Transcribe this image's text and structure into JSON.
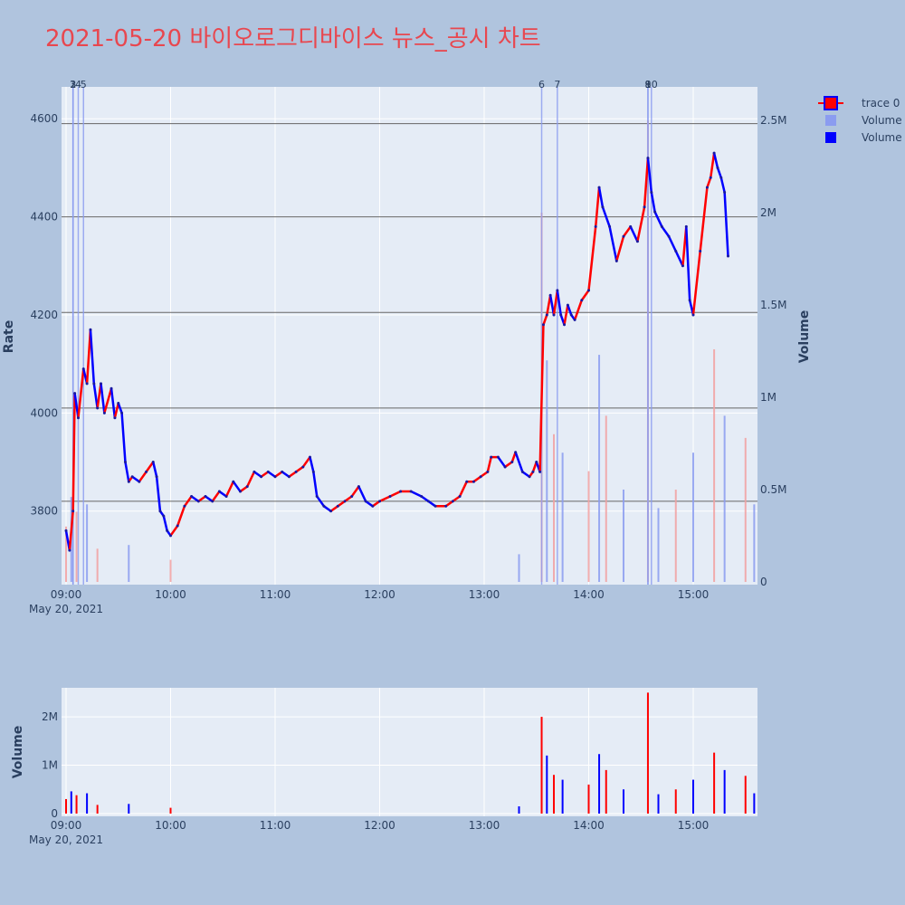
{
  "title": "2021-05-20 바이오로그디바이스 뉴스_공시 차트",
  "colors": {
    "up": "#ff0000",
    "down": "#0000ff",
    "volume_light": "#8b9cf0",
    "volume_dark": "#0000ff",
    "up_volume": "#f2a0a0",
    "grid": "#ffffff",
    "panel": "#e5ecf6",
    "hline": "#666666"
  },
  "chart_data": {
    "type": "candlestick",
    "x_ticks": [
      "09:00",
      "10:00",
      "11:00",
      "12:00",
      "13:00",
      "14:00",
      "15:00"
    ],
    "x_date_label": "May 20, 2021",
    "price_axis": {
      "label": "Rate",
      "ticks": [
        "3800",
        "4000",
        "4200",
        "4400",
        "4600"
      ],
      "range": [
        3650,
        4665
      ]
    },
    "volume_axis_right": {
      "label": "Volume",
      "ticks": [
        "0",
        "0.5M",
        "1M",
        "1.5M",
        "2M",
        "2.5M"
      ],
      "range": [
        0,
        2500000
      ]
    },
    "volume_axis_bottom": {
      "label": "Volume",
      "ticks": [
        "0",
        "1M",
        "2M"
      ],
      "range": [
        0,
        2600000
      ]
    },
    "horizontal_lines": [
      4590,
      4400,
      4205,
      4010,
      3820
    ],
    "events": [
      {
        "label": "1",
        "time": "09:04"
      },
      {
        "label": "2",
        "time": "09:04"
      },
      {
        "label": "3",
        "time": "09:04"
      },
      {
        "label": "4",
        "time": "09:07"
      },
      {
        "label": "5",
        "time": "09:10"
      },
      {
        "label": "6",
        "time": "13:33"
      },
      {
        "label": "7",
        "time": "13:42"
      },
      {
        "label": "8",
        "time": "14:34"
      },
      {
        "label": "9",
        "time": "14:34"
      },
      {
        "label": "10",
        "time": "14:36"
      }
    ],
    "price_series": [
      [
        "09:00",
        3760
      ],
      [
        "09:02",
        3720
      ],
      [
        "09:04",
        3800
      ],
      [
        "09:05",
        4040
      ],
      [
        "09:07",
        3990
      ],
      [
        "09:10",
        4090
      ],
      [
        "09:12",
        4060
      ],
      [
        "09:14",
        4170
      ],
      [
        "09:16",
        4060
      ],
      [
        "09:18",
        4010
      ],
      [
        "09:20",
        4060
      ],
      [
        "09:22",
        4000
      ],
      [
        "09:26",
        4050
      ],
      [
        "09:28",
        3990
      ],
      [
        "09:30",
        4020
      ],
      [
        "09:32",
        4000
      ],
      [
        "09:34",
        3900
      ],
      [
        "09:36",
        3860
      ],
      [
        "09:38",
        3870
      ],
      [
        "09:42",
        3860
      ],
      [
        "09:46",
        3880
      ],
      [
        "09:50",
        3900
      ],
      [
        "09:52",
        3870
      ],
      [
        "09:54",
        3800
      ],
      [
        "09:56",
        3790
      ],
      [
        "09:58",
        3760
      ],
      [
        "10:00",
        3750
      ],
      [
        "10:04",
        3770
      ],
      [
        "10:08",
        3810
      ],
      [
        "10:12",
        3830
      ],
      [
        "10:16",
        3820
      ],
      [
        "10:20",
        3830
      ],
      [
        "10:24",
        3820
      ],
      [
        "10:28",
        3840
      ],
      [
        "10:32",
        3830
      ],
      [
        "10:36",
        3860
      ],
      [
        "10:40",
        3840
      ],
      [
        "10:44",
        3850
      ],
      [
        "10:48",
        3880
      ],
      [
        "10:52",
        3870
      ],
      [
        "10:56",
        3880
      ],
      [
        "11:00",
        3870
      ],
      [
        "11:04",
        3880
      ],
      [
        "11:08",
        3870
      ],
      [
        "11:12",
        3880
      ],
      [
        "11:16",
        3890
      ],
      [
        "11:20",
        3910
      ],
      [
        "11:22",
        3880
      ],
      [
        "11:24",
        3830
      ],
      [
        "11:28",
        3810
      ],
      [
        "11:32",
        3800
      ],
      [
        "11:36",
        3810
      ],
      [
        "11:40",
        3820
      ],
      [
        "11:44",
        3830
      ],
      [
        "11:48",
        3850
      ],
      [
        "11:52",
        3820
      ],
      [
        "11:56",
        3810
      ],
      [
        "12:00",
        3820
      ],
      [
        "12:06",
        3830
      ],
      [
        "12:12",
        3840
      ],
      [
        "12:18",
        3840
      ],
      [
        "12:24",
        3830
      ],
      [
        "12:28",
        3820
      ],
      [
        "12:32",
        3810
      ],
      [
        "12:38",
        3810
      ],
      [
        "12:42",
        3820
      ],
      [
        "12:46",
        3830
      ],
      [
        "12:50",
        3860
      ],
      [
        "12:54",
        3860
      ],
      [
        "12:58",
        3870
      ],
      [
        "13:02",
        3880
      ],
      [
        "13:04",
        3910
      ],
      [
        "13:08",
        3910
      ],
      [
        "13:12",
        3890
      ],
      [
        "13:16",
        3900
      ],
      [
        "13:18",
        3920
      ],
      [
        "13:22",
        3880
      ],
      [
        "13:26",
        3870
      ],
      [
        "13:28",
        3880
      ],
      [
        "13:30",
        3900
      ],
      [
        "13:32",
        3880
      ],
      [
        "13:34",
        4180
      ],
      [
        "13:36",
        4200
      ],
      [
        "13:38",
        4240
      ],
      [
        "13:40",
        4200
      ],
      [
        "13:42",
        4250
      ],
      [
        "13:44",
        4200
      ],
      [
        "13:46",
        4180
      ],
      [
        "13:48",
        4220
      ],
      [
        "13:50",
        4200
      ],
      [
        "13:52",
        4190
      ],
      [
        "13:56",
        4230
      ],
      [
        "14:00",
        4250
      ],
      [
        "14:04",
        4380
      ],
      [
        "14:06",
        4460
      ],
      [
        "14:08",
        4420
      ],
      [
        "14:12",
        4380
      ],
      [
        "14:16",
        4310
      ],
      [
        "14:20",
        4360
      ],
      [
        "14:24",
        4380
      ],
      [
        "14:28",
        4350
      ],
      [
        "14:32",
        4420
      ],
      [
        "14:34",
        4520
      ],
      [
        "14:36",
        4450
      ],
      [
        "14:38",
        4410
      ],
      [
        "14:42",
        4380
      ],
      [
        "14:46",
        4360
      ],
      [
        "14:50",
        4330
      ],
      [
        "14:54",
        4300
      ],
      [
        "14:56",
        4380
      ],
      [
        "14:58",
        4230
      ],
      [
        "15:00",
        4200
      ],
      [
        "15:04",
        4330
      ],
      [
        "15:08",
        4460
      ],
      [
        "15:10",
        4480
      ],
      [
        "15:12",
        4530
      ],
      [
        "15:14",
        4500
      ],
      [
        "15:16",
        4480
      ],
      [
        "15:18",
        4450
      ],
      [
        "15:20",
        4320
      ]
    ],
    "volume_spikes": [
      [
        "09:00",
        300000
      ],
      [
        "09:03",
        460000
      ],
      [
        "09:06",
        380000
      ],
      [
        "09:12",
        420000
      ],
      [
        "09:18",
        180000
      ],
      [
        "09:36",
        200000
      ],
      [
        "10:00",
        120000
      ],
      [
        "13:20",
        150000
      ],
      [
        "13:33",
        2000000
      ],
      [
        "13:36",
        1200000
      ],
      [
        "13:40",
        800000
      ],
      [
        "13:45",
        700000
      ],
      [
        "14:00",
        600000
      ],
      [
        "14:06",
        1230000
      ],
      [
        "14:10",
        900000
      ],
      [
        "14:20",
        500000
      ],
      [
        "14:34",
        2500000
      ],
      [
        "14:40",
        400000
      ],
      [
        "14:50",
        500000
      ],
      [
        "15:00",
        700000
      ],
      [
        "15:12",
        1260000
      ],
      [
        "15:18",
        900000
      ],
      [
        "15:30",
        780000
      ],
      [
        "15:35",
        420000
      ]
    ]
  },
  "legend": [
    {
      "label": "trace 0",
      "icon": "candlestick-icon"
    },
    {
      "label": "Volume",
      "icon": "square-light-icon"
    },
    {
      "label": "Volume",
      "icon": "square-dark-icon"
    }
  ]
}
